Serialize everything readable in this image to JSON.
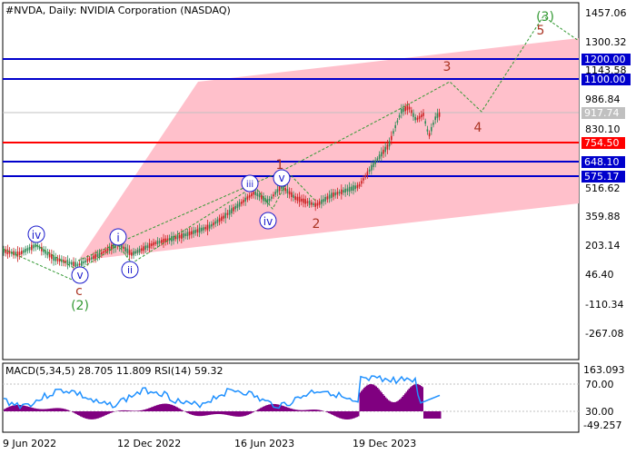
{
  "chart": {
    "symbol_line": "#NVDA, Daily:  NVIDIA Corporation (NASDAQ)",
    "price_axis": [
      "1457.06",
      "1300.32",
      "1143.58",
      "986.84",
      "830.10",
      "516.62",
      "359.88",
      "203.14",
      "46.40",
      "-110.34",
      "-267.08"
    ],
    "price_tags": [
      {
        "label": "1200.00",
        "color": "#0000cc"
      },
      {
        "label": "1100.00",
        "color": "#0000cc"
      },
      {
        "label": "917.74",
        "color": "#c0c0c0"
      },
      {
        "label": "754.50",
        "color": "#ff0000"
      },
      {
        "label": "648.10",
        "color": "#0000cc"
      },
      {
        "label": "575.17",
        "color": "#0000cc"
      }
    ],
    "date_axis": [
      "9 Jun 2022",
      "12 Dec 2022",
      "16 Jun 2023",
      "19 Dec 2023"
    ],
    "wave_labels": {
      "primary": [
        "(2)",
        "(3)"
      ],
      "intermediate": [
        "c",
        "1",
        "2",
        "3",
        "4",
        "5"
      ],
      "minor": [
        "iv",
        "v",
        "i",
        "ii",
        "iii",
        "iv",
        "v"
      ]
    },
    "colors": {
      "channel_fill": "#ffc0cb",
      "level_blue": "#0000cc",
      "level_red": "#ff0000",
      "wave_green": "#339933",
      "wave_brown": "#aa3322",
      "wave_blue": "#1a1acc",
      "candle_up": "#2e8b57",
      "candle_down": "#cc2222"
    }
  },
  "indicator": {
    "title": "MACD(5,34,5) 28.705 11.809 RSI(14) 59.32",
    "axis": [
      "163.093",
      "70.00",
      "30.00",
      "-49.257"
    ],
    "colors": {
      "macd_hist": "#800080",
      "rsi_line": "#1e90ff"
    }
  }
}
